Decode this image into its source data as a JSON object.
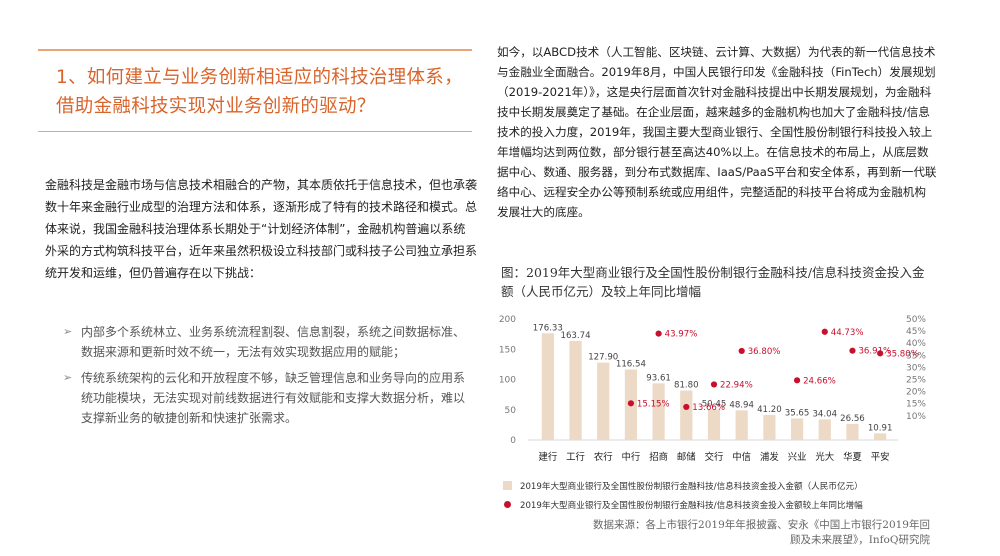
{
  "left": {
    "heading": "1、如何建立与业务创新相适应的科技治理体系，借助金融科技实现对业务创新的驱动？",
    "intro": "金融科技是金融市场与信息技术相融合的产物，其本质依托于信息技术，但也承袭数十年来金融行业成型的治理方法和体系，逐渐形成了特有的技术路径和模式。总体来说，我国金融科技治理体系长期处于“计划经济体制”，金融机构普遍以系统外采的方式构筑科技平台，近年来虽然积极设立科技部门或科技子公司独立承担系统开发和运维，但仍普遍存在以下挑战：",
    "bullets": [
      "内部多个系统林立、业务系统流程割裂、信息割裂，系统之间数据标准、数据来源和更新时效不统一，无法有效实现数据应用的赋能；",
      "传统系统架构的云化和开放程度不够，缺乏管理信息和业务导向的应用系统功能模块，无法实现对前线数据进行有效赋能和支撑大数据分析，难以支撑新业务的敏捷创新和快速扩张需求。"
    ],
    "bullet_glyph": "➢"
  },
  "right": {
    "paragraph": "如今，以ABCD技术（人工智能、区块链、云计算、大数据）为代表的新一代信息技术与金融业全面融合。2019年8月，中国人民银行印发《金融科技（FinTech）发展规划（2019-2021年）》，这是央行层面首次针对金融科技提出中长期发展规划，为金融科技中长期发展奠定了基础。在企业层面，越来越多的金融机构也加大了金融科技/信息技术的投入力度，2019年，我国主要大型商业银行、全国性股份制银行科技投入较上年增幅均达到两位数，部分银行甚至高达40%以上。在信息技术的布局上，从底层数据中心、数通、服务器，到分布式数据库、IaaS/PaaS平台和安全体系，再到新一代联络中心、远程安全办公等预制系统或应用组件，完整适配的科技平台将成为金融机构发展壮大的底座。"
  },
  "chart_data": {
    "type": "bar",
    "title": "图：2019年大型商业银行及全国性股份制银行金融科技/信息科技资金投入金额（人民币亿元）及较上年同比增幅",
    "categories": [
      "建行",
      "工行",
      "农行",
      "中行",
      "招商",
      "邮储",
      "交行",
      "中信",
      "浦发",
      "兴业",
      "光大",
      "华夏",
      "平安"
    ],
    "series": [
      {
        "name": "2019年大型商业银行及全国性股份制银行金融科技/信息科技资金投入金额（人民币亿元）",
        "type": "bar",
        "values": [
          176.33,
          163.74,
          127.9,
          116.54,
          93.61,
          81.8,
          50.45,
          48.94,
          41.2,
          35.65,
          34.04,
          26.56,
          10.91
        ],
        "labels": [
          "176.33",
          "163.74",
          "127.90",
          "116.54",
          "93.61",
          "81.80",
          "50.45",
          "48.94",
          "41.20",
          "35.65",
          "34.04",
          "26.56",
          "10.91"
        ],
        "axis": "left"
      },
      {
        "name": "2019年大型商业银行及全国性股份制银行金融科技/信息科技资金投入金额较上年同比增幅",
        "type": "scatter",
        "points": [
          {
            "category": "中行",
            "value": 15.15,
            "label": "15.15%"
          },
          {
            "category": "招商",
            "value": 43.97,
            "label": "43.97%"
          },
          {
            "category": "邮储",
            "value": 13.66,
            "label": "13.66%"
          },
          {
            "category": "交行",
            "value": 22.94,
            "label": "22.94%"
          },
          {
            "category": "中信",
            "value": 36.8,
            "label": "36.80%"
          },
          {
            "category": "兴业",
            "value": 24.66,
            "label": "24.66%"
          },
          {
            "category": "光大",
            "value": 44.73,
            "label": "44.73%"
          },
          {
            "category": "华夏",
            "value": 36.91,
            "label": "36.91%"
          },
          {
            "category": "平安",
            "value": 35.8,
            "label": "35.80%"
          }
        ],
        "axis": "right"
      }
    ],
    "y_left": {
      "min": 0,
      "max": 200,
      "ticks": [
        "0",
        "50",
        "100",
        "150",
        "200"
      ]
    },
    "y_right": {
      "min": 0,
      "max": 50,
      "ticks": [
        "10%",
        "15%",
        "20%",
        "25%",
        "30%",
        "35%",
        "40%",
        "45%",
        "50%"
      ],
      "tick_values": [
        10,
        15,
        20,
        25,
        30,
        35,
        40,
        45,
        50
      ]
    },
    "grid": false,
    "legend_position": "bottom",
    "colors": {
      "bar": "#ecd9c6",
      "dot": "#c8102e",
      "bar_label": "#444444",
      "dot_label": "#c8102e",
      "axis": "#777777"
    }
  },
  "source": "数据来源：各上市银行2019年年报披露、安永《中国上市银行2019年回顾及未来展望》，InfoQ研究院"
}
